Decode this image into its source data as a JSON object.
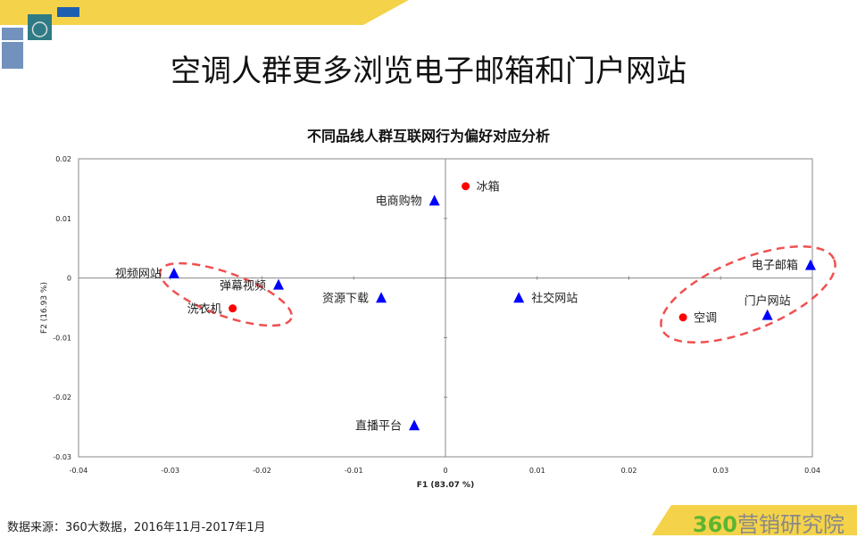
{
  "title": "空调人群更多浏览电子邮箱和门户网站",
  "source": "数据来源：360大数据，2016年11月-2017年1月",
  "logo": {
    "brand_num": "360",
    "brand_text": "营销研究院"
  },
  "colors": {
    "banner": "#f4d34a",
    "category": "#ff0000",
    "behavior": "#0000ff",
    "ellipse": "#f05050"
  },
  "chart_data": {
    "type": "scatter",
    "title": "不同品线人群互联网行为偏好对应分析",
    "xlabel": "F1 (83.07 %)",
    "ylabel": "F2 (16.93 %)",
    "xlim": [
      -0.04,
      0.04
    ],
    "ylim": [
      -0.03,
      0.02
    ],
    "xticks": [
      "-0.04",
      "-0.03",
      "-0.02",
      "-0.01",
      "0",
      "0.01",
      "0.02",
      "0.03",
      "0.04"
    ],
    "yticks": [
      "0.02",
      "0.01",
      "0",
      "-0.01",
      "-0.02",
      "-0.03"
    ],
    "grid": false,
    "series": [
      {
        "marker": "circle",
        "color": "#ff0000",
        "points": [
          {
            "label": "冰箱",
            "x": 0.0022,
            "y": 0.0154
          },
          {
            "label": "洗衣机",
            "x": -0.0232,
            "y": -0.0051
          },
          {
            "label": "空调",
            "x": 0.0259,
            "y": -0.0066
          }
        ]
      },
      {
        "marker": "triangle",
        "color": "#0000ff",
        "points": [
          {
            "label": "电商购物",
            "x": -0.0012,
            "y": 0.0129
          },
          {
            "label": "视频网站",
            "x": -0.0296,
            "y": 0.0007
          },
          {
            "label": "弹幕视频",
            "x": -0.0182,
            "y": -0.0012
          },
          {
            "label": "资源下载",
            "x": -0.007,
            "y": -0.0034
          },
          {
            "label": "社交网站",
            "x": 0.008,
            "y": -0.0034
          },
          {
            "label": "直播平台",
            "x": -0.0034,
            "y": -0.0248
          },
          {
            "label": "电子邮箱",
            "x": 0.0398,
            "y": 0.0021
          },
          {
            "label": "门户网站",
            "x": 0.0351,
            "y": -0.0063
          }
        ]
      }
    ]
  }
}
